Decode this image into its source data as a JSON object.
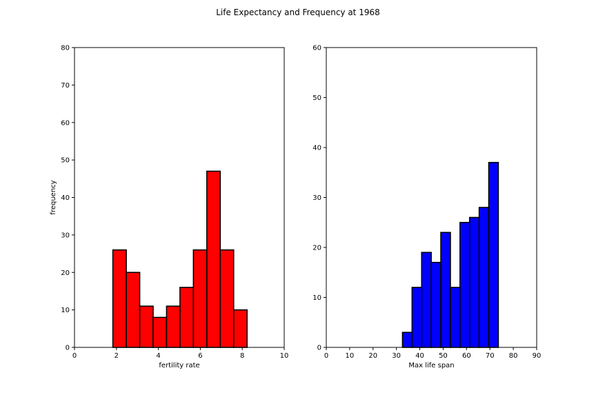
{
  "figure_title": "Life Expectancy and Frequency at 1968",
  "chart_data": [
    {
      "type": "bar",
      "subtype": "histogram",
      "title": "",
      "xlabel": "fertility rate",
      "ylabel": "frequency",
      "xlim": [
        0,
        10
      ],
      "ylim": [
        0,
        80
      ],
      "xticks": [
        0,
        2,
        4,
        6,
        8,
        10
      ],
      "yticks": [
        0,
        10,
        20,
        30,
        40,
        50,
        60,
        70,
        80
      ],
      "bin_edges": [
        1.83,
        2.47,
        3.11,
        3.75,
        4.39,
        5.03,
        5.67,
        6.31,
        6.95,
        7.59,
        8.23
      ],
      "values": [
        26,
        20,
        11,
        8,
        11,
        16,
        26,
        47,
        26,
        10
      ],
      "color": "#ff0000",
      "edgecolor": "#000000",
      "grid": false
    },
    {
      "type": "bar",
      "subtype": "histogram",
      "title": "",
      "xlabel": "Max life span",
      "ylabel": "",
      "xlim": [
        0,
        90
      ],
      "ylim": [
        0,
        60
      ],
      "xticks": [
        0,
        10,
        20,
        30,
        40,
        50,
        60,
        70,
        80,
        90
      ],
      "yticks": [
        0,
        10,
        20,
        30,
        40,
        50,
        60
      ],
      "bin_edges": [
        32.6,
        36.7,
        40.8,
        44.9,
        49.0,
        53.1,
        57.2,
        61.3,
        65.4,
        69.5,
        73.6
      ],
      "values": [
        3,
        12,
        19,
        17,
        23,
        12,
        25,
        26,
        28,
        37
      ],
      "color": "#0000ff",
      "edgecolor": "#000000",
      "grid": false
    }
  ]
}
